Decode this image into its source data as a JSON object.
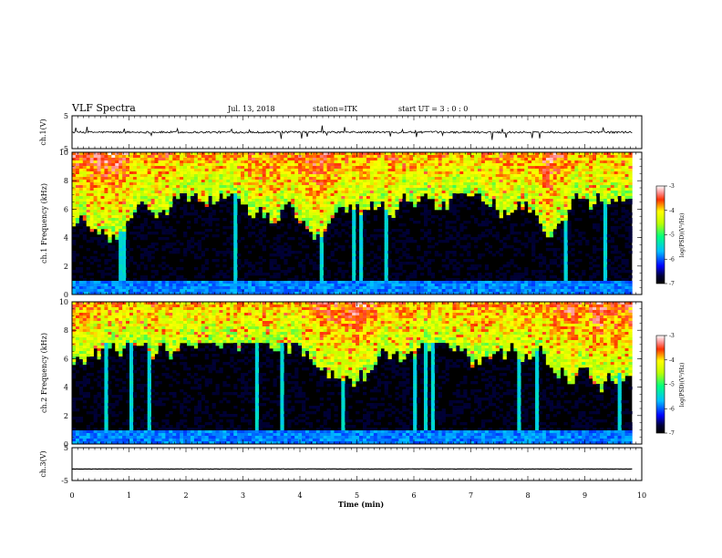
{
  "header": {
    "title": "VLF Spectra",
    "date": "Jul. 13, 2018",
    "station": "station=ITK",
    "start": "start UT =  3 : 0 : 0"
  },
  "chart_data": [
    {
      "type": "line",
      "name": "ch1-waveform",
      "ylabel": "ch.1(V)",
      "ylim": [
        -5,
        5
      ],
      "yticks": [
        5,
        -5
      ],
      "xlim": [
        0,
        10
      ],
      "baseline": 0,
      "noise_amplitude": 0.3
    },
    {
      "type": "heatmap",
      "name": "ch1-spectrogram",
      "ylabel": "ch.1 Frequency (kHz)",
      "ylim": [
        0,
        10
      ],
      "yticks": [
        0,
        2,
        4,
        6,
        8,
        10
      ],
      "xlim": [
        0,
        10
      ],
      "data_extent_min": [
        0,
        9.83
      ],
      "colorbar": {
        "label": "log(PSD)(V²/Hz)",
        "range": [
          -7,
          -3
        ],
        "ticks": [
          -3,
          -4,
          -5,
          -6,
          -7
        ]
      }
    },
    {
      "type": "heatmap",
      "name": "ch2-spectrogram",
      "ylabel": "ch.2 Frequency (kHz)",
      "ylim": [
        0,
        10
      ],
      "yticks": [
        0,
        2,
        4,
        6,
        8,
        10
      ],
      "xlim": [
        0,
        10
      ],
      "data_extent_min": [
        0,
        9.83
      ],
      "colorbar": {
        "label": "log(PSD)(V²/Hz)",
        "range": [
          -7,
          -3
        ],
        "ticks": [
          -3,
          -4,
          -5,
          -6,
          -7
        ]
      }
    },
    {
      "type": "line",
      "name": "ch3-waveform",
      "ylabel": "ch.3(V)",
      "ylim": [
        -5,
        5
      ],
      "yticks": [
        5,
        -5
      ],
      "xlim": [
        0,
        10
      ],
      "baseline": -1.5,
      "noise_amplitude": 0.05
    }
  ],
  "xaxis": {
    "label": "Time (min)",
    "ticks": [
      "0",
      "1",
      "2",
      "3",
      "4",
      "5",
      "6",
      "7",
      "8",
      "9",
      "10"
    ]
  },
  "colors": {
    "background": "#000000",
    "line": "#000000"
  }
}
